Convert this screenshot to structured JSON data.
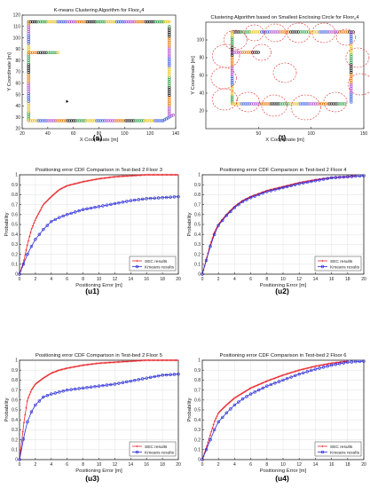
{
  "colors": {
    "sec": "#e8272c",
    "kmeans": "#2b2bd8",
    "circle": "#e03030",
    "axis": "#262626",
    "grid": "#e6e6e6"
  },
  "chart_data": [
    {
      "type": "scatter",
      "panel": "(s)",
      "title": "K-means Clustering Algorithm for Floor",
      "title_sub": "0",
      "title_tail": "4",
      "xlabel": "X Coordinate [m]",
      "ylabel": "Y Coordinate [m]",
      "xlim": [
        20,
        140
      ],
      "ylim": [
        20,
        120
      ],
      "xticks": [
        20,
        40,
        60,
        80,
        100,
        120,
        140
      ],
      "yticks": [
        20,
        30,
        40,
        50,
        60,
        70,
        80,
        90,
        100,
        110,
        120
      ],
      "grid": false,
      "paths": [
        {
          "x": [
            25,
            135
          ],
          "y": [
            114,
            114
          ]
        },
        {
          "x": [
            25,
            25
          ],
          "y": [
            27,
            114
          ]
        },
        {
          "x": [
            25,
            130
          ],
          "y": [
            27,
            27
          ]
        },
        {
          "x": [
            130,
            138
          ],
          "y": [
            27,
            32
          ]
        },
        {
          "x": [
            135,
            135
          ],
          "y": [
            32,
            110
          ]
        },
        {
          "x": [
            25,
            48
          ],
          "y": [
            87,
            87
          ]
        }
      ],
      "marker": {
        "x": 55,
        "y": 44
      }
    },
    {
      "type": "scatter",
      "panel": "(t)",
      "title": "Clustering Algorithm based on Smallest Enclosing Circle for Floor",
      "title_sub": "0",
      "title_tail": "4",
      "xlabel": "X Coordinate [m]",
      "ylabel": "Y Coordinate [m]",
      "xlim": [
        0,
        150
      ],
      "ylim": [
        0,
        120
      ],
      "xticks": [
        50,
        100,
        150
      ],
      "yticks": [
        20,
        40,
        60,
        80,
        100
      ],
      "grid": false,
      "paths": [
        {
          "x": [
            25,
            140
          ],
          "y": [
            109,
            109
          ]
        },
        {
          "x": [
            25,
            25
          ],
          "y": [
            28,
            109
          ]
        },
        {
          "x": [
            25,
            132
          ],
          "y": [
            28,
            28
          ]
        },
        {
          "x": [
            138,
            138
          ],
          "y": [
            30,
            108
          ]
        },
        {
          "x": [
            25,
            50
          ],
          "y": [
            86,
            86
          ]
        }
      ],
      "circles": [
        {
          "x": 28,
          "y": 100,
          "r": 11
        },
        {
          "x": 46,
          "y": 108,
          "r": 9
        },
        {
          "x": 66,
          "y": 108,
          "r": 10
        },
        {
          "x": 88,
          "y": 108,
          "r": 11
        },
        {
          "x": 112,
          "y": 108,
          "r": 11
        },
        {
          "x": 133,
          "y": 103,
          "r": 9
        },
        {
          "x": 19,
          "y": 82,
          "r": 13
        },
        {
          "x": 17,
          "y": 57,
          "r": 12
        },
        {
          "x": 18,
          "y": 33,
          "r": 12
        },
        {
          "x": 40,
          "y": 30,
          "r": 11
        },
        {
          "x": 65,
          "y": 26,
          "r": 12
        },
        {
          "x": 95,
          "y": 24,
          "r": 14
        },
        {
          "x": 123,
          "y": 30,
          "r": 11
        },
        {
          "x": 144,
          "y": 80,
          "r": 11
        },
        {
          "x": 147,
          "y": 50,
          "r": 12
        },
        {
          "x": 75,
          "y": 63,
          "r": 11
        },
        {
          "x": 53,
          "y": 86,
          "r": 9
        }
      ]
    },
    {
      "type": "line",
      "panel": "(u1)",
      "title": "Positioning error CDF Comparison in Test-bed 2 Floor 3",
      "xlabel": "Positioning Error [m]",
      "ylabel": "Probability",
      "xlim": [
        0,
        20
      ],
      "ylim": [
        0,
        1
      ],
      "xticks": [
        0,
        2,
        4,
        6,
        8,
        10,
        12,
        14,
        16,
        18,
        20
      ],
      "yticks": [
        0,
        0.1,
        0.2,
        0.3,
        0.4,
        0.5,
        0.6,
        0.7,
        0.8,
        0.9,
        1
      ],
      "grid": true,
      "legend": "bottom-right",
      "series": [
        {
          "name": "SEC results",
          "x": [
            0,
            0.5,
            1,
            1.5,
            2,
            3,
            4,
            5,
            6,
            8,
            10,
            12,
            14,
            16,
            18,
            20
          ],
          "values": [
            0,
            0.12,
            0.3,
            0.45,
            0.55,
            0.7,
            0.78,
            0.85,
            0.89,
            0.93,
            0.96,
            0.98,
            0.99,
            1,
            1,
            1
          ]
        },
        {
          "name": "Kmeans results",
          "x": [
            0,
            0.5,
            1,
            1.5,
            2,
            3,
            4,
            5,
            6,
            8,
            10,
            12,
            14,
            16,
            18,
            20
          ],
          "values": [
            0,
            0.1,
            0.2,
            0.28,
            0.35,
            0.45,
            0.53,
            0.57,
            0.6,
            0.65,
            0.68,
            0.71,
            0.74,
            0.76,
            0.77,
            0.78
          ]
        }
      ]
    },
    {
      "type": "line",
      "panel": "(u2)",
      "title": "Positioning error CDF Comparison in Test-bed 2 Floor 4",
      "xlabel": "Positioning Error [m]",
      "ylabel": "Probability",
      "xlim": [
        0,
        20
      ],
      "ylim": [
        0,
        1
      ],
      "xticks": [
        0,
        2,
        4,
        6,
        8,
        10,
        12,
        14,
        16,
        18,
        20
      ],
      "yticks": [
        0,
        0.1,
        0.2,
        0.3,
        0.4,
        0.5,
        0.6,
        0.7,
        0.8,
        0.9,
        1
      ],
      "grid": true,
      "legend": "bottom-right",
      "series": [
        {
          "name": "SEC results",
          "x": [
            0,
            0.5,
            1,
            1.5,
            2,
            3,
            4,
            5,
            6,
            8,
            10,
            12,
            14,
            16,
            18,
            19
          ],
          "values": [
            0,
            0.15,
            0.3,
            0.42,
            0.5,
            0.6,
            0.68,
            0.74,
            0.78,
            0.84,
            0.88,
            0.92,
            0.95,
            0.97,
            0.98,
            0.99
          ]
        },
        {
          "name": "Kmeans results",
          "x": [
            0,
            0.5,
            1,
            1.5,
            2,
            3,
            4,
            5,
            6,
            8,
            10,
            12,
            14,
            16,
            18,
            20
          ],
          "values": [
            0,
            0.14,
            0.28,
            0.4,
            0.49,
            0.59,
            0.67,
            0.73,
            0.77,
            0.83,
            0.87,
            0.91,
            0.94,
            0.97,
            0.98,
            0.99
          ]
        }
      ]
    },
    {
      "type": "line",
      "panel": "(u3)",
      "title": "Positioning error CDF Comparison in Test-bed 2 Floor 5",
      "xlabel": "Positioning Error [m]",
      "ylabel": "Probability",
      "xlim": [
        0,
        20
      ],
      "ylim": [
        0,
        1
      ],
      "xticks": [
        0,
        2,
        4,
        6,
        8,
        10,
        12,
        14,
        16,
        18,
        20
      ],
      "yticks": [
        0,
        0.1,
        0.2,
        0.3,
        0.4,
        0.5,
        0.6,
        0.7,
        0.8,
        0.9,
        1
      ],
      "grid": true,
      "legend": "bottom-right",
      "series": [
        {
          "name": "SEC results",
          "x": [
            0,
            0.3,
            0.6,
            1,
            1.5,
            2,
            3,
            4,
            5,
            6,
            8,
            10,
            12,
            14,
            16,
            18,
            20
          ],
          "values": [
            0,
            0.2,
            0.4,
            0.6,
            0.7,
            0.76,
            0.82,
            0.87,
            0.9,
            0.92,
            0.95,
            0.97,
            0.98,
            0.99,
            1,
            1,
            1
          ]
        },
        {
          "name": "Kmeans results",
          "x": [
            0,
            0.3,
            0.6,
            1,
            1.5,
            2,
            3,
            4,
            5,
            6,
            8,
            10,
            12,
            14,
            16,
            18,
            20
          ],
          "values": [
            0,
            0.12,
            0.25,
            0.38,
            0.48,
            0.55,
            0.63,
            0.66,
            0.68,
            0.7,
            0.72,
            0.74,
            0.76,
            0.79,
            0.82,
            0.85,
            0.86
          ]
        }
      ]
    },
    {
      "type": "line",
      "panel": "(u4)",
      "title": "Positioning error CDF Comparison in Test-bed 2 Floor 6",
      "xlabel": "Positioning Error [m]",
      "ylabel": "Probability",
      "xlim": [
        0,
        20
      ],
      "ylim": [
        0,
        1
      ],
      "xticks": [
        0,
        2,
        4,
        6,
        8,
        10,
        12,
        14,
        16,
        18,
        20
      ],
      "yticks": [
        0,
        0.1,
        0.2,
        0.3,
        0.4,
        0.5,
        0.6,
        0.7,
        0.8,
        0.9,
        1
      ],
      "grid": true,
      "legend": "bottom-right",
      "series": [
        {
          "name": "SEC results",
          "x": [
            0,
            0.5,
            1,
            1.5,
            2,
            3,
            4,
            5,
            6,
            8,
            10,
            12,
            14,
            16,
            18
          ],
          "values": [
            0,
            0.12,
            0.25,
            0.38,
            0.47,
            0.55,
            0.62,
            0.67,
            0.72,
            0.79,
            0.85,
            0.9,
            0.94,
            0.97,
            0.99
          ]
        },
        {
          "name": "Kmeans results",
          "x": [
            0,
            0.5,
            1,
            1.5,
            2,
            3,
            4,
            5,
            6,
            8,
            10,
            12,
            14,
            16,
            18,
            20
          ],
          "values": [
            0,
            0.1,
            0.2,
            0.3,
            0.38,
            0.47,
            0.55,
            0.61,
            0.66,
            0.74,
            0.8,
            0.86,
            0.91,
            0.95,
            0.98,
            0.99
          ]
        }
      ]
    }
  ]
}
